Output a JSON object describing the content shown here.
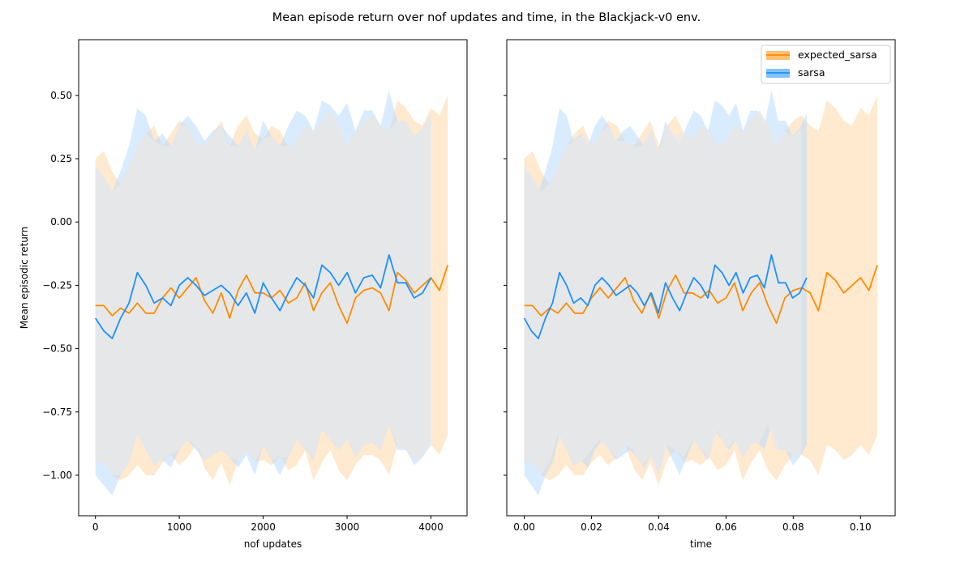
{
  "title": "Mean episode return over nof updates and time, in the Blackjack-v0 env.",
  "colors": {
    "expected_sarsa": "#ff8c00",
    "sarsa": "#1e90ff",
    "expected_sarsa_band": "#ffd7a8",
    "sarsa_band": "#b9dcff",
    "overlap_band": "#e8e8e8"
  },
  "chart_data": [
    {
      "type": "line",
      "xlabel": "nof updates",
      "ylabel": "Mean episodic return",
      "xlim": [
        -200,
        4430
      ],
      "ylim": [
        -1.16,
        0.72
      ],
      "xticks": [
        0,
        1000,
        2000,
        3000,
        4000
      ],
      "xtick_labels": [
        "0",
        "1000",
        "2000",
        "3000",
        "4000"
      ],
      "yticks": [
        -1.0,
        -0.75,
        -0.5,
        -0.25,
        0.0,
        0.25,
        0.5
      ],
      "ytick_labels": [
        "−1.00",
        "−0.75",
        "−0.50",
        "−0.25",
        "0.00",
        "0.25",
        "0.50"
      ],
      "grid": false,
      "series": [
        {
          "name": "expected_sarsa",
          "x": [
            0,
            100,
            200,
            300,
            400,
            500,
            600,
            700,
            800,
            900,
            1000,
            1100,
            1200,
            1300,
            1400,
            1500,
            1600,
            1700,
            1800,
            1900,
            2000,
            2100,
            2200,
            2300,
            2400,
            2500,
            2600,
            2700,
            2800,
            2900,
            3000,
            3100,
            3200,
            3300,
            3400,
            3500,
            3600,
            3700,
            3800,
            3900,
            4000,
            4100,
            4200
          ],
          "y": [
            -0.33,
            -0.33,
            -0.37,
            -0.34,
            -0.36,
            -0.32,
            -0.36,
            -0.36,
            -0.3,
            -0.26,
            -0.3,
            -0.26,
            -0.22,
            -0.31,
            -0.36,
            -0.28,
            -0.38,
            -0.27,
            -0.21,
            -0.28,
            -0.28,
            -0.3,
            -0.27,
            -0.32,
            -0.3,
            -0.24,
            -0.35,
            -0.28,
            -0.24,
            -0.33,
            -0.4,
            -0.3,
            -0.27,
            -0.26,
            -0.28,
            -0.35,
            -0.2,
            -0.23,
            -0.28,
            -0.25,
            -0.22,
            -0.27,
            -0.17
          ],
          "band": {
            "upper": [
              0.25,
              0.28,
              0.2,
              0.15,
              0.22,
              0.3,
              0.35,
              0.38,
              0.3,
              0.35,
              0.4,
              0.38,
              0.32,
              0.3,
              0.35,
              0.4,
              0.3,
              0.38,
              0.42,
              0.35,
              0.33,
              0.38,
              0.36,
              0.3,
              0.32,
              0.38,
              0.36,
              0.4,
              0.44,
              0.38,
              0.3,
              0.36,
              0.4,
              0.42,
              0.38,
              0.36,
              0.48,
              0.45,
              0.4,
              0.38,
              0.45,
              0.42,
              0.5
            ],
            "lower": [
              -0.95,
              -0.95,
              -1.0,
              -1.02,
              -1.0,
              -0.96,
              -1.0,
              -1.0,
              -0.95,
              -0.92,
              -0.96,
              -0.93,
              -0.88,
              -0.97,
              -1.02,
              -0.95,
              -1.04,
              -0.94,
              -0.9,
              -0.95,
              -0.94,
              -0.96,
              -0.93,
              -0.98,
              -0.96,
              -0.9,
              -1.02,
              -0.95,
              -0.9,
              -0.98,
              -1.02,
              -0.96,
              -0.92,
              -0.92,
              -0.94,
              -1.0,
              -0.88,
              -0.9,
              -0.94,
              -0.92,
              -0.88,
              -0.92,
              -0.84
            ]
          }
        },
        {
          "name": "sarsa",
          "x": [
            0,
            100,
            200,
            300,
            400,
            500,
            600,
            700,
            800,
            900,
            1000,
            1100,
            1200,
            1300,
            1400,
            1500,
            1600,
            1700,
            1800,
            1900,
            2000,
            2100,
            2200,
            2300,
            2400,
            2500,
            2600,
            2700,
            2800,
            2900,
            3000,
            3100,
            3200,
            3300,
            3400,
            3500,
            3600,
            3700,
            3800,
            3900,
            4000
          ],
          "y": [
            -0.38,
            -0.43,
            -0.46,
            -0.38,
            -0.32,
            -0.2,
            -0.25,
            -0.32,
            -0.3,
            -0.33,
            -0.25,
            -0.22,
            -0.25,
            -0.29,
            -0.27,
            -0.25,
            -0.28,
            -0.33,
            -0.28,
            -0.36,
            -0.24,
            -0.3,
            -0.35,
            -0.28,
            -0.22,
            -0.25,
            -0.3,
            -0.17,
            -0.2,
            -0.25,
            -0.2,
            -0.28,
            -0.22,
            -0.21,
            -0.26,
            -0.13,
            -0.24,
            -0.24,
            -0.3,
            -0.28,
            -0.22
          ],
          "band": {
            "upper": [
              0.22,
              0.18,
              0.12,
              0.2,
              0.3,
              0.45,
              0.42,
              0.32,
              0.35,
              0.3,
              0.38,
              0.42,
              0.38,
              0.32,
              0.36,
              0.38,
              0.34,
              0.3,
              0.36,
              0.28,
              0.4,
              0.34,
              0.3,
              0.38,
              0.44,
              0.42,
              0.36,
              0.48,
              0.46,
              0.42,
              0.47,
              0.36,
              0.44,
              0.44,
              0.38,
              0.52,
              0.4,
              0.4,
              0.34,
              0.37,
              0.43
            ],
            "lower": [
              -1.0,
              -1.04,
              -1.08,
              -1.0,
              -0.95,
              -0.84,
              -0.9,
              -0.96,
              -0.94,
              -0.97,
              -0.9,
              -0.86,
              -0.9,
              -0.94,
              -0.92,
              -0.9,
              -0.93,
              -0.97,
              -0.92,
              -1.0,
              -0.88,
              -0.94,
              -1.0,
              -0.93,
              -0.86,
              -0.9,
              -0.94,
              -0.82,
              -0.86,
              -0.9,
              -0.86,
              -0.93,
              -0.88,
              -0.87,
              -0.9,
              -0.8,
              -0.9,
              -0.9,
              -0.96,
              -0.93,
              -0.88
            ]
          }
        }
      ]
    },
    {
      "type": "line",
      "xlabel": "time",
      "ylabel": "",
      "xlim": [
        -0.0052,
        0.1103
      ],
      "ylim": [
        -1.16,
        0.72
      ],
      "xticks": [
        0.0,
        0.02,
        0.04,
        0.06,
        0.08,
        0.1
      ],
      "xtick_labels": [
        "0.00",
        "0.02",
        "0.04",
        "0.06",
        "0.08",
        "0.10"
      ],
      "yticks": [
        -1.0,
        -0.75,
        -0.5,
        -0.25,
        0.0,
        0.25,
        0.5
      ],
      "grid": false,
      "legend": {
        "placement": "top-right",
        "entries": [
          "expected_sarsa",
          "sarsa"
        ]
      },
      "series": [
        {
          "name": "expected_sarsa",
          "x": [
            0,
            0.0025,
            0.005,
            0.0075,
            0.01,
            0.0125,
            0.015,
            0.0175,
            0.02,
            0.0225,
            0.025,
            0.0275,
            0.03,
            0.0325,
            0.035,
            0.0375,
            0.04,
            0.0425,
            0.045,
            0.0475,
            0.05,
            0.0525,
            0.055,
            0.0575,
            0.06,
            0.0625,
            0.065,
            0.0675,
            0.07,
            0.0725,
            0.075,
            0.0775,
            0.08,
            0.0825,
            0.085,
            0.0875,
            0.09,
            0.0925,
            0.095,
            0.0975,
            0.1,
            0.1025,
            0.105
          ],
          "y": [
            -0.33,
            -0.33,
            -0.37,
            -0.34,
            -0.36,
            -0.32,
            -0.36,
            -0.36,
            -0.3,
            -0.26,
            -0.3,
            -0.26,
            -0.22,
            -0.31,
            -0.36,
            -0.28,
            -0.38,
            -0.27,
            -0.21,
            -0.28,
            -0.28,
            -0.3,
            -0.27,
            -0.32,
            -0.3,
            -0.24,
            -0.35,
            -0.28,
            -0.24,
            -0.33,
            -0.4,
            -0.3,
            -0.27,
            -0.26,
            -0.28,
            -0.35,
            -0.2,
            -0.23,
            -0.28,
            -0.25,
            -0.22,
            -0.27,
            -0.17
          ],
          "band": {
            "upper": [
              0.25,
              0.28,
              0.2,
              0.15,
              0.22,
              0.3,
              0.35,
              0.38,
              0.3,
              0.35,
              0.4,
              0.38,
              0.32,
              0.3,
              0.35,
              0.4,
              0.3,
              0.38,
              0.42,
              0.35,
              0.33,
              0.38,
              0.36,
              0.3,
              0.32,
              0.38,
              0.36,
              0.4,
              0.44,
              0.38,
              0.3,
              0.36,
              0.4,
              0.42,
              0.38,
              0.36,
              0.48,
              0.45,
              0.4,
              0.38,
              0.45,
              0.42,
              0.5
            ],
            "lower": [
              -0.95,
              -0.95,
              -1.0,
              -1.02,
              -1.0,
              -0.96,
              -1.0,
              -1.0,
              -0.95,
              -0.92,
              -0.96,
              -0.93,
              -0.88,
              -0.97,
              -1.02,
              -0.95,
              -1.04,
              -0.94,
              -0.9,
              -0.95,
              -0.94,
              -0.96,
              -0.93,
              -0.98,
              -0.96,
              -0.9,
              -1.02,
              -0.95,
              -0.9,
              -0.98,
              -1.02,
              -0.96,
              -0.92,
              -0.92,
              -0.94,
              -1.0,
              -0.88,
              -0.9,
              -0.94,
              -0.92,
              -0.88,
              -0.92,
              -0.84
            ]
          }
        },
        {
          "name": "sarsa",
          "x": [
            0,
            0.0021,
            0.0042,
            0.0063,
            0.0084,
            0.0105,
            0.0126,
            0.0147,
            0.0168,
            0.0189,
            0.021,
            0.0231,
            0.0252,
            0.0273,
            0.0294,
            0.0315,
            0.0336,
            0.0357,
            0.0378,
            0.0399,
            0.042,
            0.0441,
            0.0462,
            0.0483,
            0.0504,
            0.0525,
            0.0546,
            0.0567,
            0.0588,
            0.0609,
            0.063,
            0.0651,
            0.0672,
            0.0693,
            0.0714,
            0.0735,
            0.0756,
            0.0777,
            0.0798,
            0.0819,
            0.084
          ],
          "y": [
            -0.38,
            -0.43,
            -0.46,
            -0.38,
            -0.32,
            -0.2,
            -0.25,
            -0.32,
            -0.3,
            -0.33,
            -0.25,
            -0.22,
            -0.25,
            -0.29,
            -0.27,
            -0.25,
            -0.28,
            -0.33,
            -0.28,
            -0.36,
            -0.24,
            -0.3,
            -0.35,
            -0.28,
            -0.22,
            -0.25,
            -0.3,
            -0.17,
            -0.2,
            -0.25,
            -0.2,
            -0.28,
            -0.22,
            -0.21,
            -0.26,
            -0.13,
            -0.24,
            -0.24,
            -0.3,
            -0.28,
            -0.22
          ],
          "band": {
            "upper": [
              0.22,
              0.18,
              0.12,
              0.2,
              0.3,
              0.45,
              0.42,
              0.32,
              0.35,
              0.3,
              0.38,
              0.42,
              0.38,
              0.32,
              0.36,
              0.38,
              0.34,
              0.3,
              0.36,
              0.28,
              0.4,
              0.34,
              0.3,
              0.38,
              0.44,
              0.42,
              0.36,
              0.48,
              0.46,
              0.42,
              0.47,
              0.36,
              0.44,
              0.44,
              0.38,
              0.52,
              0.4,
              0.4,
              0.34,
              0.37,
              0.43
            ],
            "lower": [
              -1.0,
              -1.04,
              -1.08,
              -1.0,
              -0.95,
              -0.84,
              -0.9,
              -0.96,
              -0.94,
              -0.97,
              -0.9,
              -0.86,
              -0.9,
              -0.94,
              -0.92,
              -0.9,
              -0.93,
              -0.97,
              -0.92,
              -1.0,
              -0.88,
              -0.94,
              -1.0,
              -0.93,
              -0.86,
              -0.9,
              -0.94,
              -0.82,
              -0.86,
              -0.9,
              -0.86,
              -0.93,
              -0.88,
              -0.87,
              -0.9,
              -0.8,
              -0.9,
              -0.9,
              -0.96,
              -0.93,
              -0.88
            ]
          }
        }
      ]
    }
  ]
}
